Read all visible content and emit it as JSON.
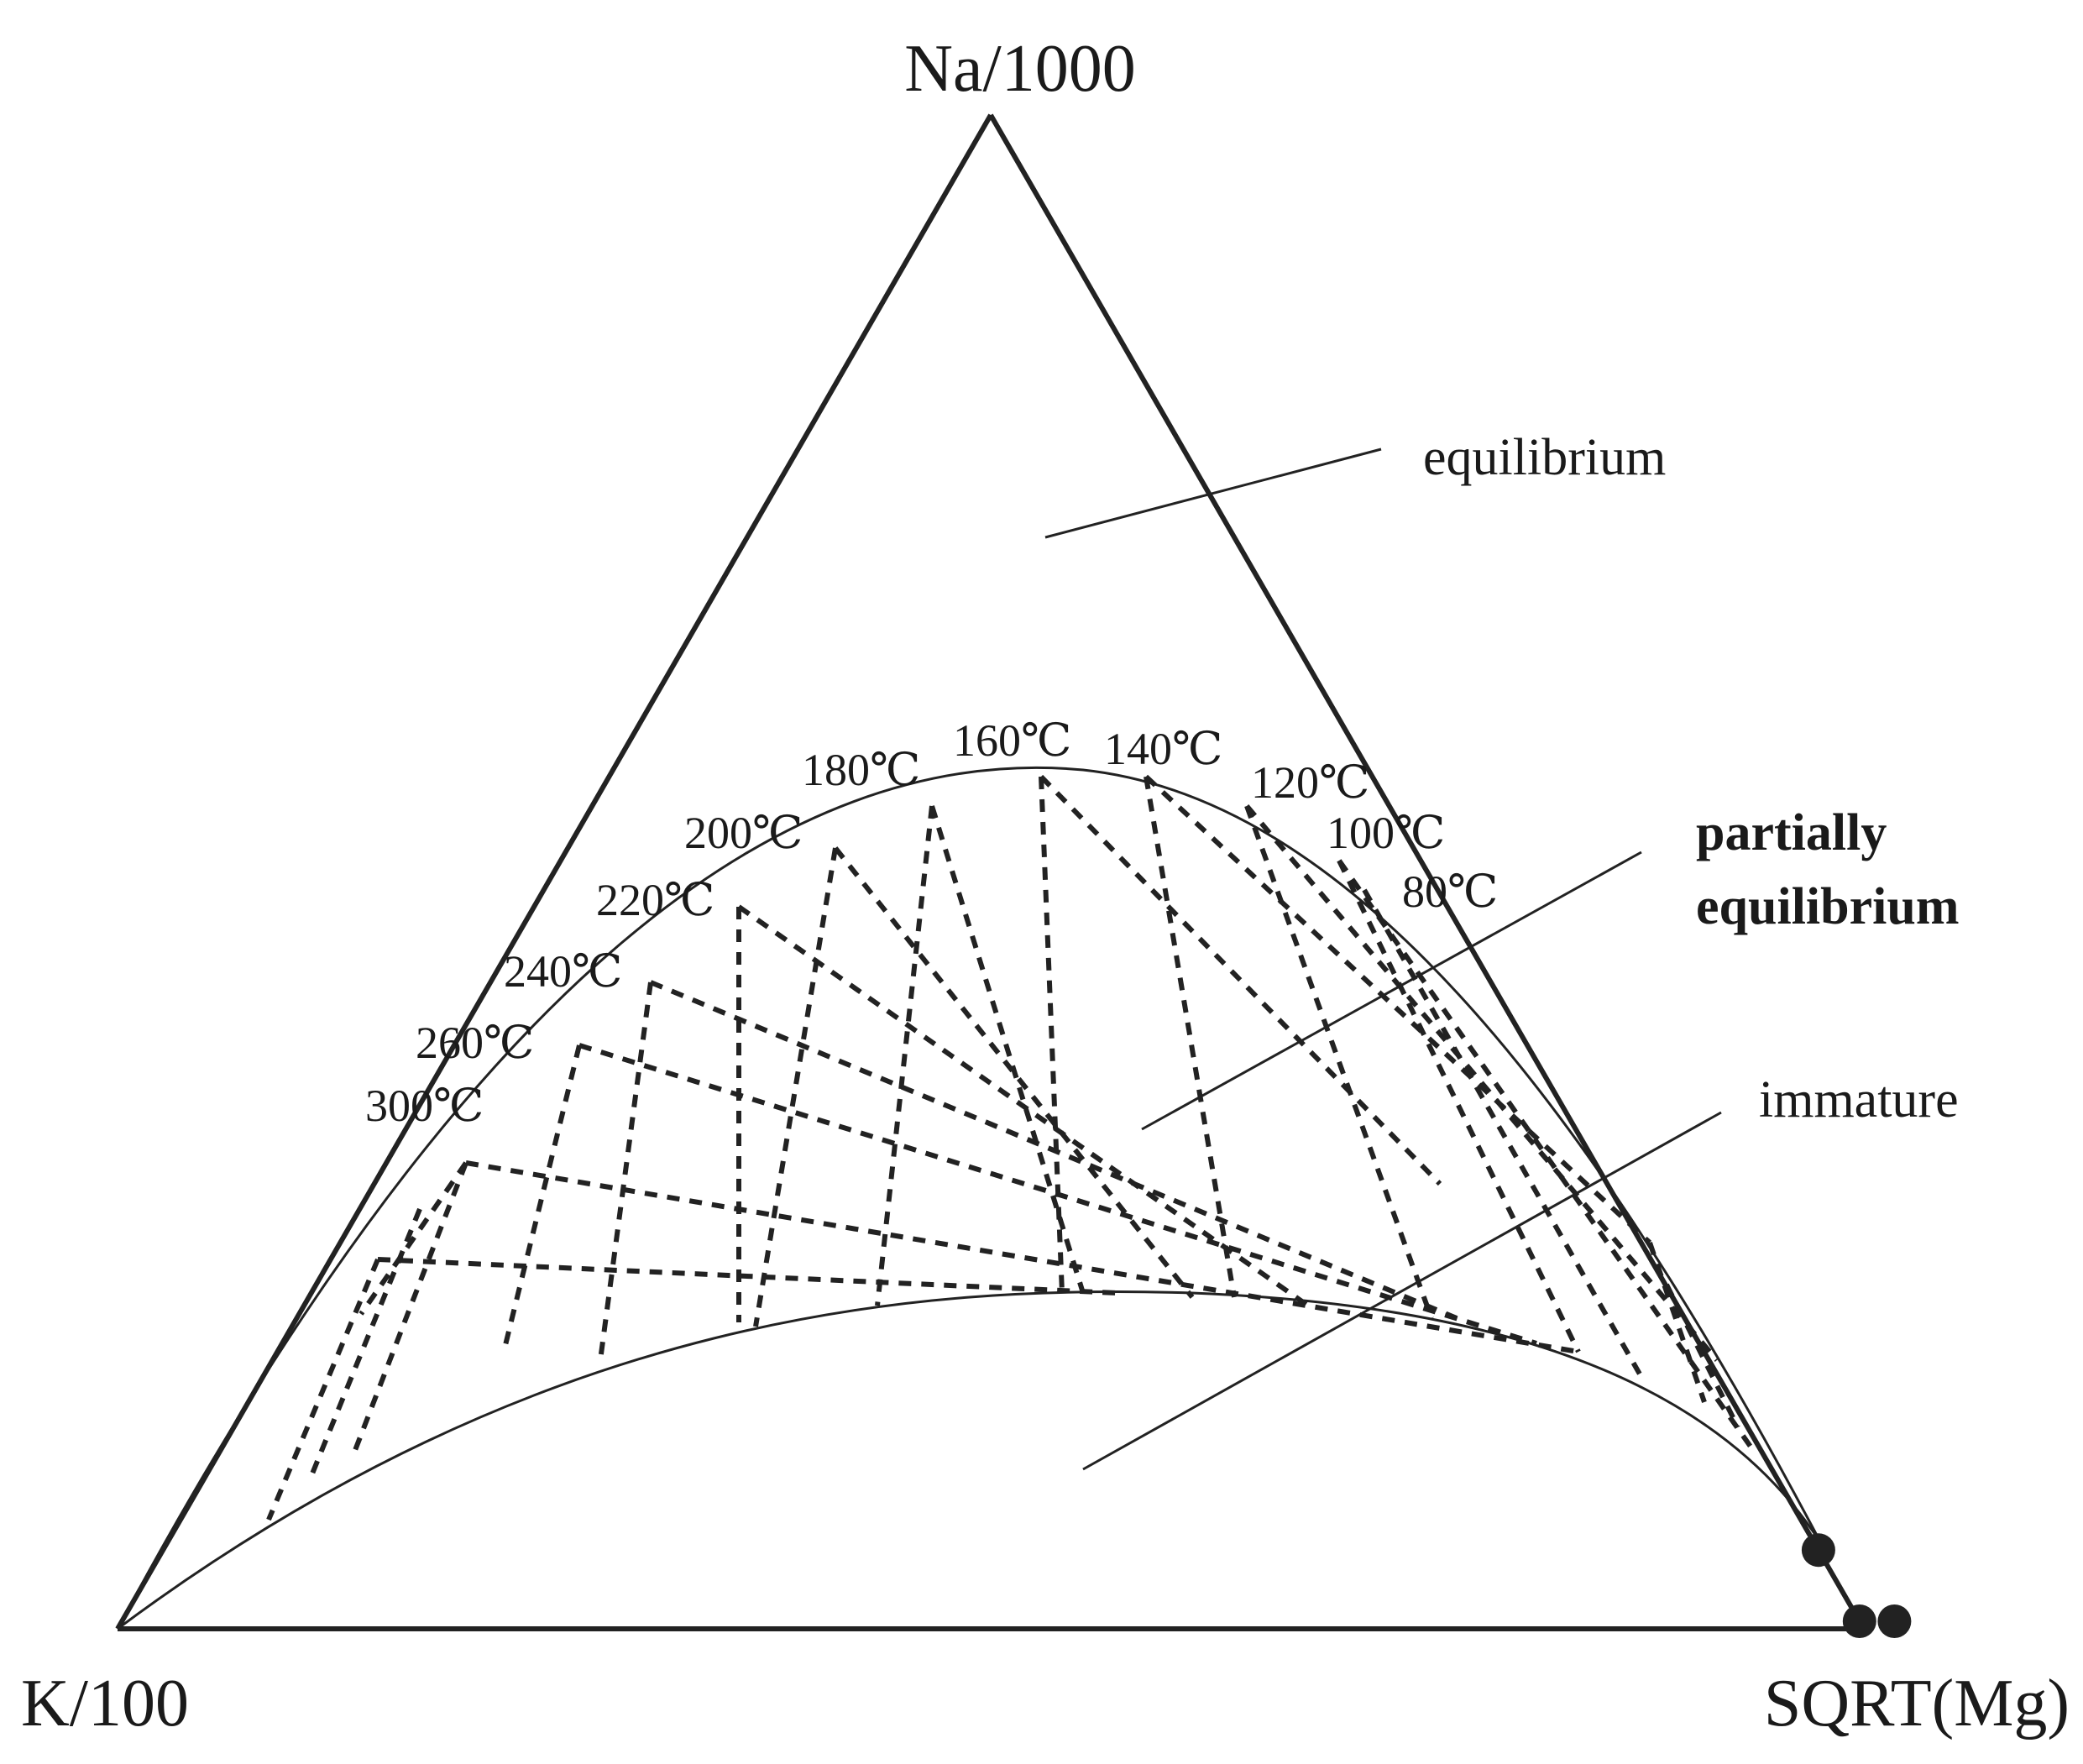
{
  "chart_data": {
    "type": "ternary",
    "vertices": {
      "top": "Na/1000",
      "left": "K/100",
      "right": "SQRT(Mg)"
    },
    "temperature_labels": [
      "300℃",
      "260℃",
      "240℃",
      "220℃",
      "200℃",
      "180℃",
      "160℃",
      "140℃",
      "120℃",
      "100℃",
      "80℃"
    ],
    "zones": [
      {
        "id": "equilibrium",
        "label": "equilibrium",
        "bold": false
      },
      {
        "id": "partial",
        "label_lines": [
          "partially",
          "equilibrium"
        ],
        "bold": true
      },
      {
        "id": "immature",
        "label": "immature",
        "bold": false
      }
    ],
    "samples": [
      {
        "na": 0.052,
        "k": 0.0,
        "mg": 0.948
      },
      {
        "na": 0.005,
        "k": 0.0,
        "mg": 0.995
      },
      {
        "na": 0.005,
        "k": -0.02,
        "mg": 1.015
      }
    ],
    "colors": {
      "line": "#222222",
      "sample": "#222222"
    }
  }
}
